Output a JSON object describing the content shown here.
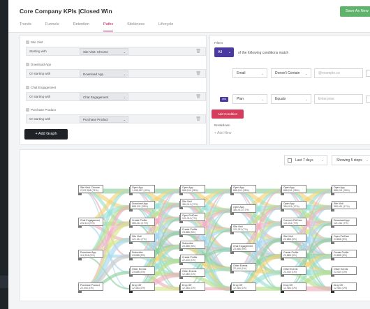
{
  "header": {
    "title": "Core Company KPIs |Closed Win",
    "save_label": "Save As New"
  },
  "tabs": [
    {
      "label": "Trends"
    },
    {
      "label": "Funnels"
    },
    {
      "label": "Retention"
    },
    {
      "label": "Paths"
    },
    {
      "label": "Stickiness"
    },
    {
      "label": "Lifecycle"
    }
  ],
  "steps": [
    {
      "title": "Site Visit",
      "prefix": "Starting with",
      "event": "Site Visit: Chrome"
    },
    {
      "title": "Download App",
      "prefix": "Or starting with",
      "event": "Download App"
    },
    {
      "title": "Chat Engagement",
      "prefix": "Or starting with",
      "event": "Chat Engagement"
    },
    {
      "title": "Purchase Product",
      "prefix": "Or starting with",
      "event": "Purchase Product"
    }
  ],
  "add_graph_label": "+ Add Graph",
  "filters": {
    "title": "Filters",
    "all_label": "All",
    "match_text": "of the following conditions match",
    "rows": [
      {
        "property": "Email",
        "operator": "Doesn't Contain",
        "value_placeholder": "@example.co"
      },
      {
        "connector": "and",
        "property": "Plan",
        "operator": "Equals",
        "value_placeholder": "Enterprise"
      }
    ],
    "add_condition_label": "Add Condition",
    "breakdown_title": "Breakdown",
    "add_new_label": "+ Add New"
  },
  "chart_controls": {
    "range": "Last 7 days",
    "steps": "Showing 5 steps"
  },
  "chart_data": {
    "type": "sankey",
    "columns": [
      {
        "nodes": [
          {
            "label": "Site Visit: Chrome",
            "value": "2,022,968 (71%)"
          },
          {
            "label": "Chat Engagement",
            "value": "222,111 (5%)"
          },
          {
            "label": "Download App",
            "value": "112,334 (5%)"
          },
          {
            "label": "Purchase Product",
            "value": "22,444 (1%)"
          }
        ]
      },
      {
        "nodes": [
          {
            "label": "Open App",
            "value": "1,188,987 (49%)"
          },
          {
            "label": "Download App",
            "value": "888,241 (35%)"
          },
          {
            "label": "Create Profile",
            "value": "384,411 (17%)"
          },
          {
            "label": "Site Visit",
            "value": "121,311 (7%)"
          },
          {
            "label": "Subscribe",
            "value": "23,888 (5%)"
          },
          {
            "label": "Other Events",
            "value": "23,888 (1%)"
          },
          {
            "label": "Drop Off",
            "value": "12,484 (1%)"
          }
        ]
      },
      {
        "nodes": [
          {
            "label": "Open App",
            "value": "888,241 (35%)"
          },
          {
            "label": "Site Visit",
            "value": "384,411 (17%)"
          },
          {
            "label": "Open PetCam",
            "value": "121,311 (7%)"
          },
          {
            "label": "Create Profile",
            "value": "23,888 (5%)"
          },
          {
            "label": "Subscribe",
            "value": "23,888 (5%)"
          },
          {
            "label": "Create Profile",
            "value": "22,444 (1%)"
          },
          {
            "label": "Other Events",
            "value": "12,484 (1%)"
          },
          {
            "label": "Drop Off",
            "value": "12,484 (1%)"
          }
        ]
      },
      {
        "nodes": [
          {
            "label": "Open App",
            "value": "888,241 (35%)"
          },
          {
            "label": "Open App",
            "value": "384,411 (17%)"
          },
          {
            "label": "Site Visit",
            "value": "121,311 (7%)"
          },
          {
            "label": "Chat Engagement",
            "value": "23,888 (5%)"
          },
          {
            "label": "Other Events",
            "value": "22,444 (1%)"
          },
          {
            "label": "Drop Off",
            "value": "12,484 (1%)"
          }
        ]
      },
      {
        "nodes": [
          {
            "label": "Open App",
            "value": "888,241 (35%)"
          },
          {
            "label": "Open App",
            "value": "384,411 (17%)"
          },
          {
            "label": "Connect PetCam",
            "value": "121,311 (7%)"
          },
          {
            "label": "Site Visit",
            "value": "23,888 (5%)"
          },
          {
            "label": "Create Profile",
            "value": "23,888 (5%)"
          },
          {
            "label": "Other Events",
            "value": "22,444 (1%)"
          },
          {
            "label": "Drop Off",
            "value": "12,484 (1%)"
          }
        ]
      },
      {
        "nodes": [
          {
            "label": "Open App",
            "value": "888,241 (35%)"
          },
          {
            "label": "Site Visit",
            "value": "384,411 (17%)"
          },
          {
            "label": "Download App",
            "value": "121,311 (7%)"
          },
          {
            "label": "Open PetCam",
            "value": "23,888 (5%)"
          },
          {
            "label": "Create Profile",
            "value": "23,888 (5%)"
          },
          {
            "label": "Other Events",
            "value": "22,444 (1%)"
          },
          {
            "label": "Drop Off",
            "value": "12,484 (1%)"
          }
        ]
      }
    ]
  },
  "colors": {
    "accent": "#c2185b",
    "primary": "#4a3aa0",
    "save": "#5fb36a",
    "add_condition": "#d63d5d"
  }
}
